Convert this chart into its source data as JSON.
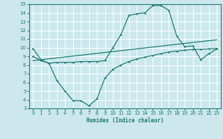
{
  "xlabel": "Humidex (Indice chaleur)",
  "bg_color": "#cce8ec",
  "line_color": "#1a7a6e",
  "grid_color": "#ffffff",
  "xlim": [
    -0.5,
    23.5
  ],
  "ylim": [
    3,
    15
  ],
  "xticks": [
    0,
    1,
    2,
    3,
    4,
    5,
    6,
    7,
    8,
    9,
    10,
    11,
    12,
    13,
    14,
    15,
    16,
    17,
    18,
    19,
    20,
    21,
    22,
    23
  ],
  "yticks": [
    3,
    4,
    5,
    6,
    7,
    8,
    9,
    10,
    11,
    12,
    13,
    14,
    15
  ],
  "line1_x": [
    0,
    1,
    2,
    3,
    4,
    5,
    6,
    7,
    8,
    9,
    10,
    11,
    12,
    13,
    14,
    15,
    16,
    17,
    18,
    19,
    20,
    21,
    22,
    23
  ],
  "line1_y": [
    9.9,
    8.6,
    8.2,
    8.3,
    8.3,
    8.3,
    8.4,
    8.4,
    8.4,
    8.5,
    10.0,
    11.5,
    13.7,
    13.9,
    14.0,
    14.85,
    14.85,
    14.3,
    11.3,
    10.1,
    10.2,
    8.6,
    9.3,
    9.85
  ],
  "line2_x": [
    0,
    23
  ],
  "line2_y": [
    8.5,
    10.9
  ],
  "line3_x": [
    0,
    1,
    2,
    3,
    4,
    5,
    6,
    7,
    8,
    9,
    10,
    11,
    12,
    13,
    14,
    15,
    16,
    17,
    18,
    19,
    20,
    21,
    22,
    23
  ],
  "line3_y": [
    9.0,
    8.5,
    8.2,
    6.2,
    5.0,
    3.9,
    3.9,
    3.3,
    4.1,
    6.5,
    7.5,
    8.0,
    8.4,
    8.7,
    8.9,
    9.1,
    9.3,
    9.5,
    9.6,
    9.7,
    9.8,
    9.8,
    9.85,
    9.9
  ]
}
